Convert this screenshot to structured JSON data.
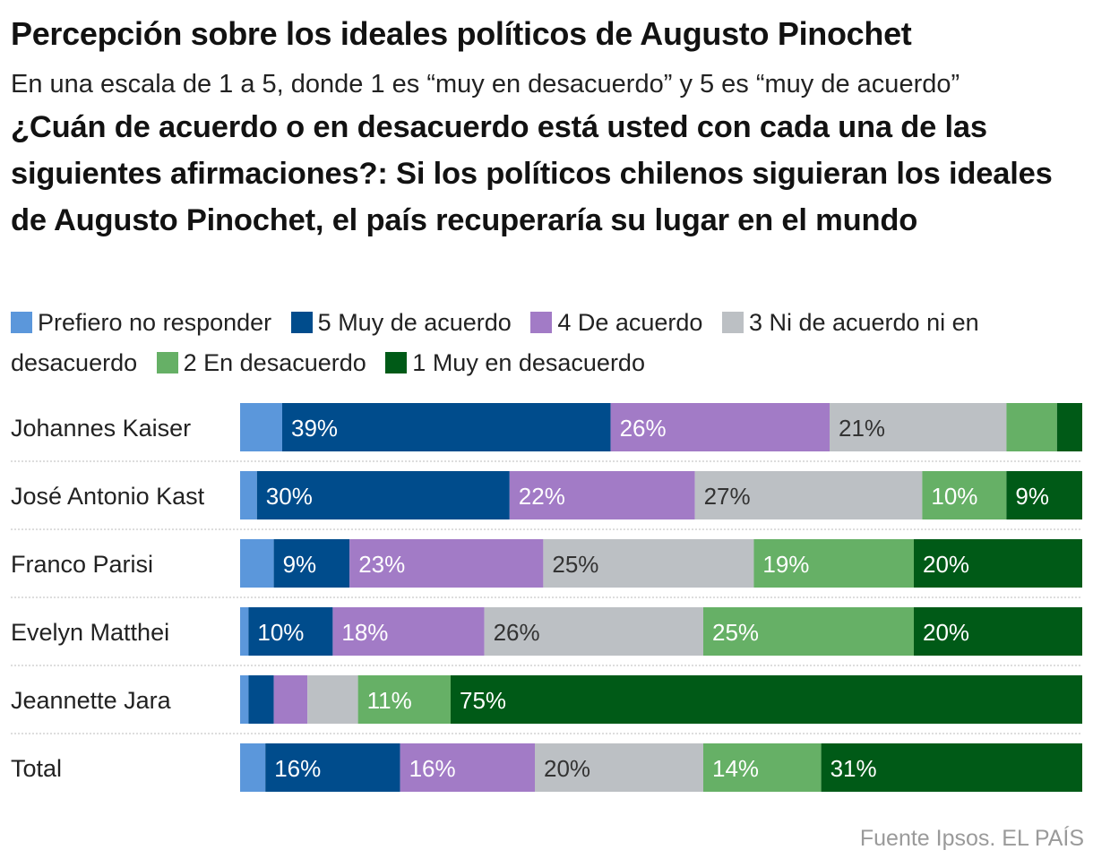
{
  "header": {
    "title": "Percepción sobre los ideales políticos de Augusto Pinochet",
    "subtitle": "En una escala de 1 a 5, donde 1 es “muy en desacuerdo” y 5 es “muy de acuerdo”",
    "question": "¿Cuán de acuerdo o en desacuerdo está usted con cada una de las siguientes afirmaciones?: Si los políticos chilenos siguieran los ideales de Augusto Pinochet, el país recuperaría su lugar en el mundo"
  },
  "source": "Fuente Ipsos. EL PAÍS",
  "chart_data": {
    "type": "bar",
    "orientation": "horizontal",
    "stacked": true,
    "normalized_percent": true,
    "xlim": [
      0,
      100
    ],
    "legend_position": "top",
    "grid": false,
    "categories": [
      "Johannes Kaiser",
      "José Antonio Kast",
      "Franco Parisi",
      "Evelyn Matthei",
      "Jeannette Jara",
      "Total"
    ],
    "series": [
      {
        "name": "Prefiero no responder",
        "color": "#5b97db",
        "text_color": "#ffffff",
        "values": [
          5,
          2,
          4,
          1,
          1,
          3
        ],
        "labels": [
          "",
          "",
          "",
          "",
          "",
          ""
        ]
      },
      {
        "name": "5 Muy de acuerdo",
        "color": "#004c8c",
        "text_color": "#ffffff",
        "values": [
          39,
          30,
          9,
          10,
          3,
          16
        ],
        "labels": [
          "39%",
          "30%",
          "9%",
          "10%",
          "",
          "16%"
        ]
      },
      {
        "name": "4 De acuerdo",
        "color": "#a27bc6",
        "text_color": "#ffffff",
        "values": [
          26,
          22,
          23,
          18,
          4,
          16
        ],
        "labels": [
          "26%",
          "22%",
          "23%",
          "18%",
          "",
          "16%"
        ]
      },
      {
        "name": "3 Ni de acuerdo ni en desacuerdo",
        "color": "#bcc0c4",
        "text_color": "#333333",
        "values": [
          21,
          27,
          25,
          26,
          6,
          20
        ],
        "labels": [
          "21%",
          "27%",
          "25%",
          "26%",
          "",
          "20%"
        ]
      },
      {
        "name": "2 En desacuerdo",
        "color": "#66b066",
        "text_color": "#ffffff",
        "values": [
          6,
          10,
          19,
          25,
          11,
          14
        ],
        "labels": [
          "",
          "10%",
          "19%",
          "25%",
          "11%",
          "14%"
        ]
      },
      {
        "name": "1 Muy en desacuerdo",
        "color": "#005a17",
        "text_color": "#ffffff",
        "values": [
          3,
          9,
          20,
          20,
          75,
          31
        ],
        "labels": [
          "",
          "9%",
          "20%",
          "20%",
          "75%",
          "31%"
        ]
      }
    ]
  }
}
